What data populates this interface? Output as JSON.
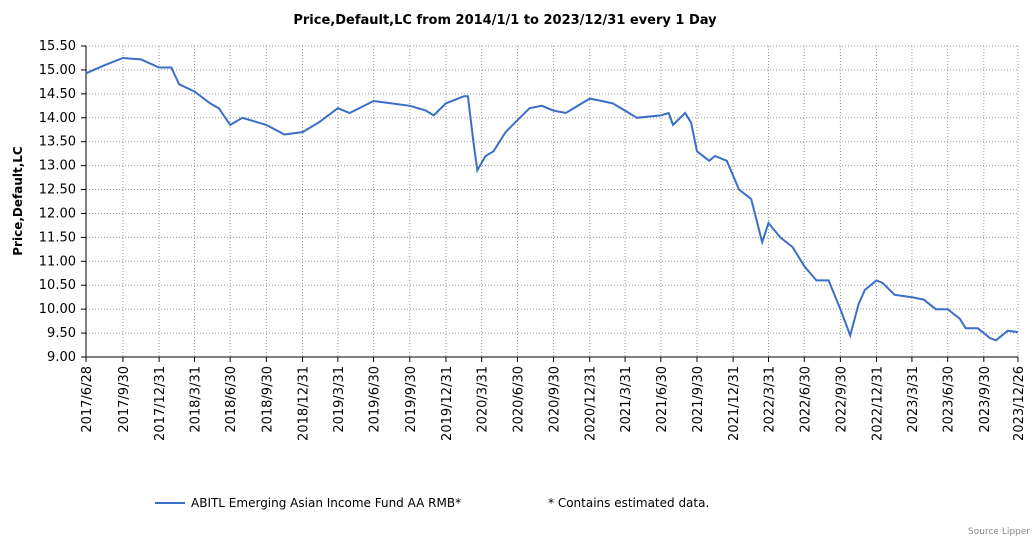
{
  "chart_data": {
    "type": "line",
    "title": "Price,Default,LC from 2014/1/1 to 2023/12/31 every 1 Day",
    "y_label": "Price,Default,LC",
    "xlim": [
      "2017/6/28",
      "2023/12/26"
    ],
    "xticks": [
      "2017/6/28",
      "2017/9/30",
      "2017/12/31",
      "2018/3/31",
      "2018/6/30",
      "2018/9/30",
      "2018/12/31",
      "2019/3/31",
      "2019/6/30",
      "2019/9/30",
      "2019/12/31",
      "2020/3/31",
      "2020/6/30",
      "2020/9/30",
      "2020/12/31",
      "2021/3/31",
      "2021/6/30",
      "2021/9/30",
      "2021/12/31",
      "2022/3/31",
      "2022/6/30",
      "2022/9/30",
      "2022/12/31",
      "2023/3/31",
      "2023/6/30",
      "2023/9/30",
      "2023/12/26"
    ],
    "ylim": [
      9,
      15.5
    ],
    "yticks": [
      {
        "value": 9,
        "label": "9.00"
      },
      {
        "value": 9.5,
        "label": "9.50"
      },
      {
        "value": 10,
        "label": "10.00"
      },
      {
        "value": 10.5,
        "label": "10.50"
      },
      {
        "value": 11,
        "label": "11.00"
      },
      {
        "value": 11.5,
        "label": "11.50"
      },
      {
        "value": 12,
        "label": "12.00"
      },
      {
        "value": 12.5,
        "label": "12.50"
      },
      {
        "value": 13,
        "label": "13.00"
      },
      {
        "value": 13.5,
        "label": "13.50"
      },
      {
        "value": 14,
        "label": "14.00"
      },
      {
        "value": 14.5,
        "label": "14.50"
      },
      {
        "value": 15,
        "label": "15.00"
      },
      {
        "value": 15.5,
        "label": "15.50"
      }
    ],
    "grid": true,
    "x": [
      "2017/6/28",
      "2017/8/15",
      "2017/9/30",
      "2017/11/15",
      "2017/12/31",
      "2018/1/31",
      "2018/2/20",
      "2018/3/31",
      "2018/5/10",
      "2018/6/1",
      "2018/6/30",
      "2018/7/31",
      "2018/9/30",
      "2018/11/15",
      "2018/12/31",
      "2019/2/10",
      "2019/3/31",
      "2019/4/30",
      "2019/6/30",
      "2019/8/15",
      "2019/9/30",
      "2019/11/10",
      "2019/11/30",
      "2019/12/31",
      "2020/2/15",
      "2020/2/25",
      "2020/3/10",
      "2020/3/20",
      "2020/4/10",
      "2020/4/30",
      "2020/5/31",
      "2020/6/30",
      "2020/7/31",
      "2020/8/31",
      "2020/9/30",
      "2020/10/31",
      "2020/12/31",
      "2021/1/31",
      "2021/2/28",
      "2021/3/31",
      "2021/4/30",
      "2021/6/30",
      "2021/7/20",
      "2021/7/31",
      "2021/8/31",
      "2021/9/15",
      "2021/9/30",
      "2021/10/31",
      "2021/11/15",
      "2021/12/15",
      "2022/1/15",
      "2022/2/15",
      "2022/3/15",
      "2022/3/31",
      "2022/4/30",
      "2022/5/31",
      "2022/6/30",
      "2022/7/31",
      "2022/8/31",
      "2022/9/30",
      "2022/10/25",
      "2022/11/15",
      "2022/12/1",
      "2022/12/31",
      "2023/1/15",
      "2023/2/15",
      "2023/3/31",
      "2023/4/30",
      "2023/5/31",
      "2023/6/30",
      "2023/7/31",
      "2023/8/15",
      "2023/9/15",
      "2023/10/15",
      "2023/10/31",
      "2023/11/30",
      "2023/12/26"
    ],
    "series": [
      {
        "name": "ABITL Emerging Asian Income Fund AA RMB*",
        "color": "#3a6fc8",
        "values": [
          14.93,
          15.1,
          15.25,
          15.22,
          15.05,
          15.05,
          14.7,
          14.55,
          14.3,
          14.2,
          13.85,
          14.0,
          13.85,
          13.65,
          13.7,
          13.9,
          14.2,
          14.1,
          14.35,
          14.3,
          14.25,
          14.15,
          14.05,
          14.3,
          14.45,
          14.45,
          13.5,
          12.9,
          13.2,
          13.3,
          13.7,
          13.95,
          14.2,
          14.25,
          14.15,
          14.1,
          14.4,
          14.35,
          14.3,
          14.15,
          14.0,
          14.05,
          14.1,
          13.85,
          14.1,
          13.9,
          13.3,
          13.1,
          13.2,
          13.1,
          12.5,
          12.3,
          11.4,
          11.8,
          11.5,
          11.3,
          10.9,
          10.6,
          10.6,
          10.0,
          9.45,
          10.1,
          10.4,
          10.6,
          10.55,
          10.3,
          10.25,
          10.2,
          10.0,
          10.0,
          9.8,
          9.6,
          9.6,
          9.4,
          9.35,
          9.55,
          9.52
        ]
      }
    ],
    "note": "*  Contains estimated data.",
    "source": "Source Lipper"
  }
}
